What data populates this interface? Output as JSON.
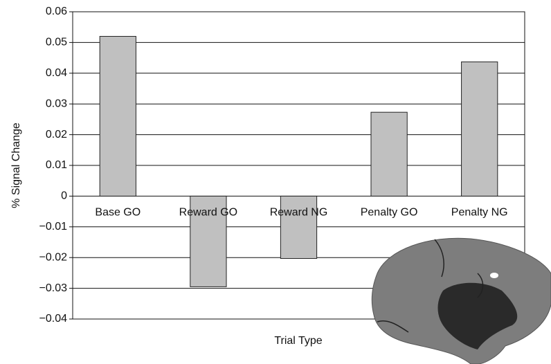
{
  "chart_data": {
    "type": "bar",
    "categories": [
      "Base GO",
      "Reward GO",
      "Reward NG",
      "Penalty GO",
      "Penalty NG"
    ],
    "values": [
      0.052,
      -0.0295,
      -0.0203,
      0.0273,
      0.0437
    ],
    "color": "#c0c0c0",
    "ylabel": "% Signal Change",
    "xlabel": "Trial Type",
    "ylim": [
      -0.04,
      0.06
    ],
    "yticks": [
      {
        "value": -0.04,
        "label": "−0.04"
      },
      {
        "value": -0.03,
        "label": "−0.03"
      },
      {
        "value": -0.02,
        "label": "−0.02"
      },
      {
        "value": -0.01,
        "label": "−0.01"
      },
      0,
      0.01,
      0.02,
      0.03,
      0.04,
      0.05,
      0.06
    ],
    "grid": true
  }
}
